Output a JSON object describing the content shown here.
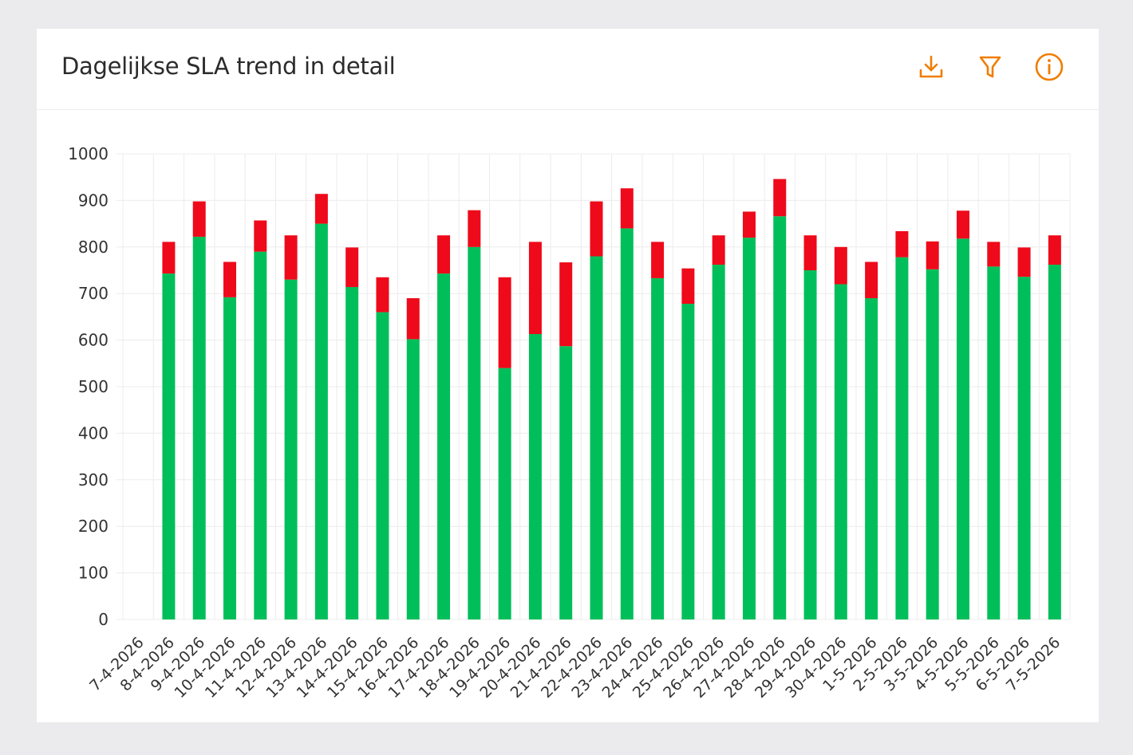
{
  "header": {
    "title": "Dagelijkse SLA trend in detail",
    "actions": [
      {
        "name": "download-icon"
      },
      {
        "name": "filter-icon"
      },
      {
        "name": "info-icon"
      }
    ]
  },
  "colors": {
    "accent": "#ef7d00",
    "met": "#00bf5a",
    "breached": "#ee0a1a",
    "grid": "#ececec",
    "axis_text": "#333333"
  },
  "chart_data": {
    "type": "bar",
    "stacked": true,
    "title": "Dagelijkse SLA trend in detail",
    "xlabel": "",
    "ylabel": "",
    "ylim": [
      0,
      1000
    ],
    "yticks": [
      0,
      100,
      200,
      300,
      400,
      500,
      600,
      700,
      800,
      900,
      1000
    ],
    "grid": true,
    "legend": "none",
    "categories": [
      "7-4-2026",
      "8-4-2026",
      "9-4-2026",
      "10-4-2026",
      "11-4-2026",
      "12-4-2026",
      "13-4-2026",
      "14-4-2026",
      "15-4-2026",
      "16-4-2026",
      "17-4-2026",
      "18-4-2026",
      "19-4-2026",
      "20-4-2026",
      "21-4-2026",
      "22-4-2026",
      "23-4-2026",
      "24-4-2026",
      "25-4-2026",
      "26-4-2026",
      "27-4-2026",
      "28-4-2026",
      "29-4-2026",
      "30-4-2026",
      "1-5-2026",
      "2-5-2026",
      "3-5-2026",
      "4-5-2026",
      "5-5-2026",
      "6-5-2026",
      "7-5-2026"
    ],
    "series": [
      {
        "color": "#00bf5a",
        "values": [
          0,
          743,
          822,
          692,
          790,
          730,
          850,
          714,
          660,
          602,
          743,
          800,
          540,
          613,
          587,
          780,
          840,
          733,
          678,
          762,
          820,
          866,
          750,
          720,
          690,
          778,
          752,
          818,
          758,
          736,
          762
        ]
      },
      {
        "color": "#ee0a1a",
        "values": [
          0,
          68,
          76,
          76,
          67,
          95,
          64,
          85,
          75,
          88,
          82,
          79,
          195,
          198,
          180,
          118,
          86,
          78,
          76,
          63,
          56,
          80,
          75,
          80,
          78,
          56,
          60,
          60,
          53,
          63,
          63
        ]
      }
    ]
  }
}
